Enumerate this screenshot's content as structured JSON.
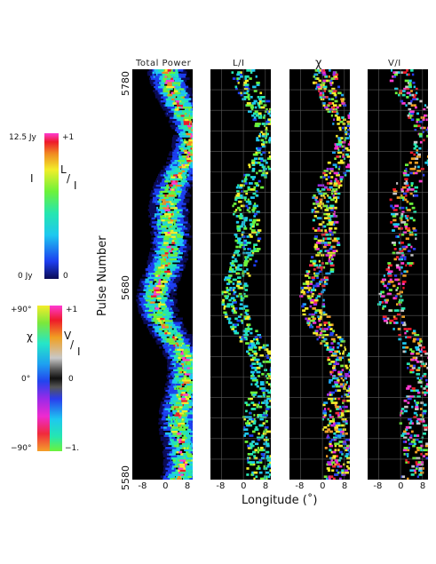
{
  "chart_data": {
    "type": "heatmap",
    "panels": [
      {
        "title": "Total Power",
        "scale": "intensity"
      },
      {
        "title": "L/I",
        "scale": "fraction"
      },
      {
        "title": "χ",
        "scale": "angle"
      },
      {
        "title": "V/I",
        "scale": "circular"
      }
    ],
    "ylabel": "Pulse Number",
    "xlabel": "Longitude (˚)",
    "y_ticks": [
      "5580",
      "5680",
      "5780"
    ],
    "ylim": [
      5580,
      5780
    ],
    "x_ticks": [
      "-8",
      "0",
      "8"
    ],
    "xlim": [
      -12,
      10
    ],
    "colorbar_intensity": {
      "left_label": "I",
      "right_label_num": "L",
      "right_label_den": "I",
      "left_top": "12.5 Jy",
      "left_bottom": "0 Jy",
      "right_top": "+1",
      "right_bottom": "0"
    },
    "colorbar_angle": {
      "left_label": "χ",
      "right_label_num": "V",
      "right_label_den": "I",
      "left_top": "+90°",
      "left_mid": "0°",
      "left_bottom": "−90°",
      "right_top": "+1",
      "right_mid": "0",
      "right_bottom": "−1."
    }
  }
}
